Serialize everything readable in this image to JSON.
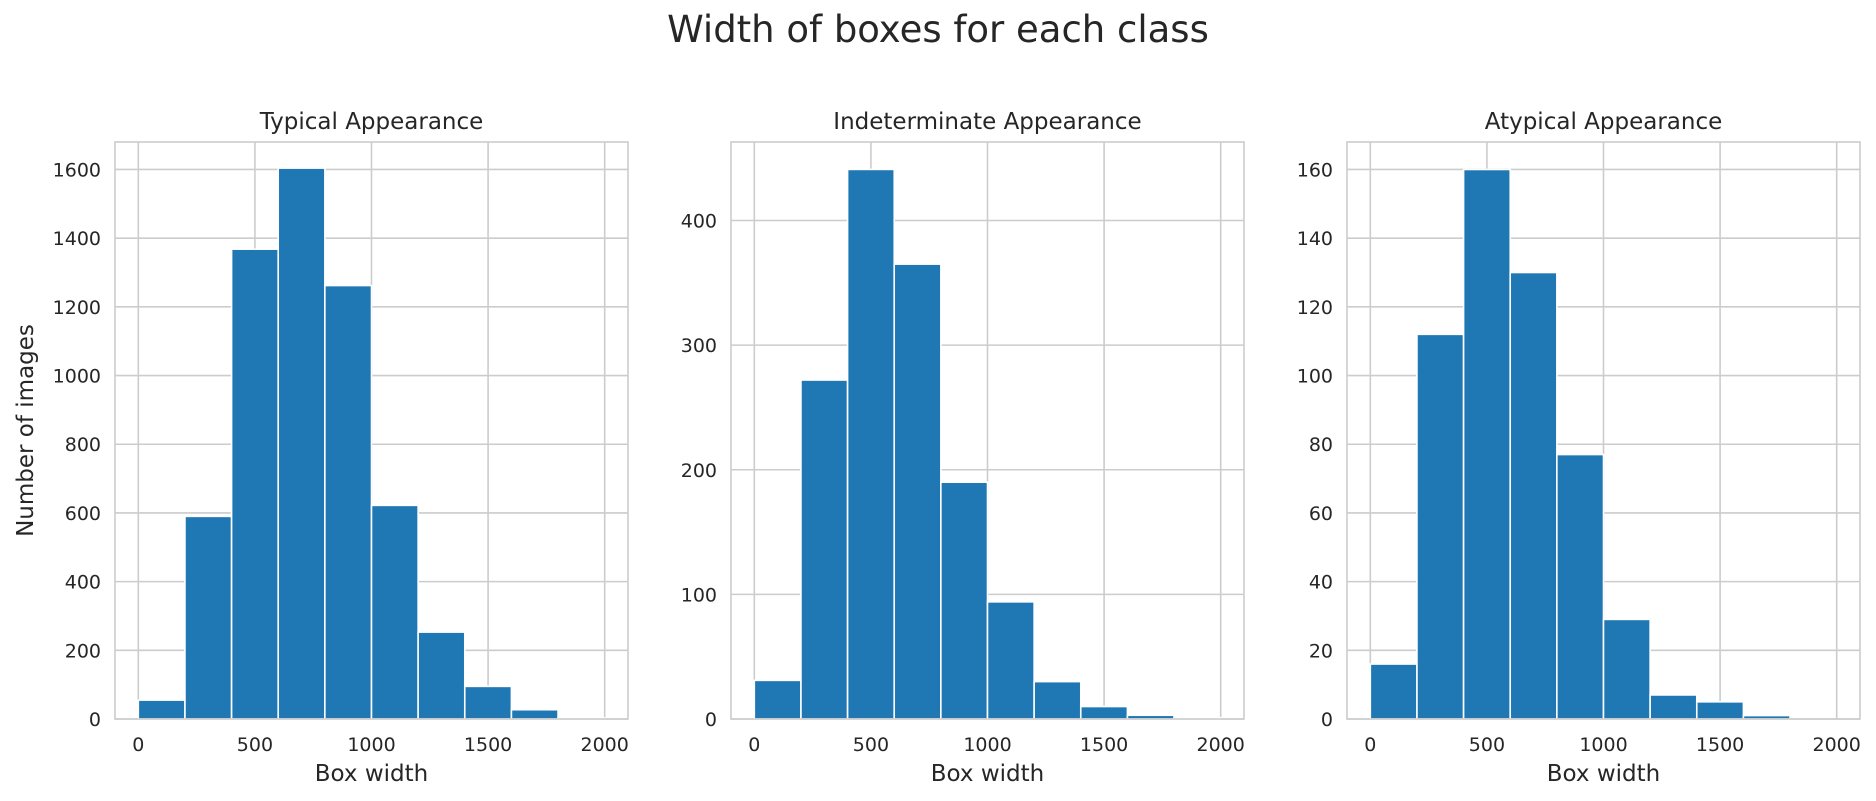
{
  "figure": {
    "suptitle": "Width of boxes for each class",
    "bar_color": "#1f77b4",
    "grid_color": "#cccccc"
  },
  "chart_data": [
    {
      "type": "bar",
      "title": "Typical Appearance",
      "xlabel": "Box width",
      "ylabel": "Number of images",
      "bin_edges": [
        0,
        200,
        400,
        600,
        800,
        1000,
        1200,
        1400,
        1600,
        1800,
        2000
      ],
      "values": [
        55,
        590,
        1368,
        1604,
        1262,
        622,
        253,
        95,
        27,
        3
      ],
      "xlim": [
        -100,
        2100
      ],
      "ylim": [
        0,
        1680
      ],
      "xticks": [
        0,
        500,
        1000,
        1500,
        2000
      ],
      "yticks": [
        0,
        200,
        400,
        600,
        800,
        1000,
        1200,
        1400,
        1600
      ],
      "grid": true
    },
    {
      "type": "bar",
      "title": "Indeterminate Appearance",
      "xlabel": "Box width",
      "ylabel": "",
      "bin_edges": [
        0,
        200,
        400,
        600,
        800,
        1000,
        1200,
        1400,
        1600,
        1800,
        2000
      ],
      "values": [
        31,
        272,
        441,
        365,
        190,
        94,
        30,
        10,
        3,
        1
      ],
      "xlim": [
        -100,
        2100
      ],
      "ylim": [
        0,
        463
      ],
      "xticks": [
        0,
        500,
        1000,
        1500,
        2000
      ],
      "yticks": [
        0,
        100,
        200,
        300,
        400
      ],
      "grid": true
    },
    {
      "type": "bar",
      "title": "Atypical Appearance",
      "xlabel": "Box width",
      "ylabel": "",
      "bin_edges": [
        0,
        200,
        400,
        600,
        800,
        1000,
        1200,
        1400,
        1600,
        1800,
        2000
      ],
      "values": [
        16,
        112,
        160,
        130,
        77,
        29,
        7,
        5,
        1,
        0
      ],
      "xlim": [
        -100,
        2100
      ],
      "ylim": [
        0,
        168
      ],
      "xticks": [
        0,
        500,
        1000,
        1500,
        2000
      ],
      "yticks": [
        0,
        20,
        40,
        60,
        80,
        100,
        120,
        140,
        160
      ],
      "grid": true
    }
  ]
}
